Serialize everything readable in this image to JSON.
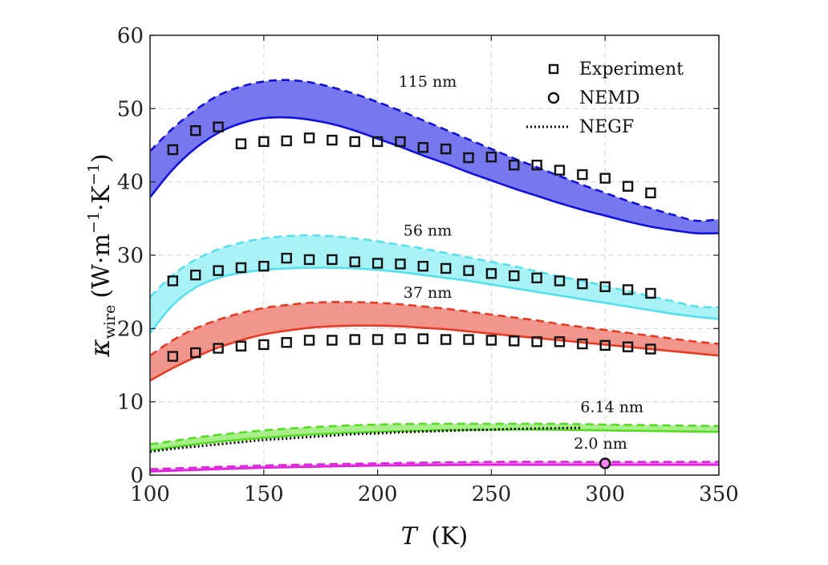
{
  "chart_data": {
    "type": "line",
    "xlabel": "T (K)",
    "xlabel_symbol": "T",
    "xlabel_unit": "(K)",
    "ylabel": "κwire (W·m−1·K−1)",
    "ylabel_symbol": "κ",
    "ylabel_subscript": "wire",
    "ylabel_unit_open": "(W·m",
    "ylabel_unit_exp1": "−1",
    "ylabel_unit_mid": "·K",
    "ylabel_unit_exp2": "−1",
    "ylabel_unit_close": ")",
    "xlim": [
      100,
      350
    ],
    "ylim": [
      0,
      60
    ],
    "xticks": [
      100,
      150,
      200,
      250,
      300,
      350
    ],
    "yticks": [
      0,
      10,
      20,
      30,
      40,
      50,
      60
    ],
    "grid": true,
    "legend_position": "top-right",
    "legend": [
      {
        "label": "Experiment",
        "marker": "square"
      },
      {
        "label": "NEMD",
        "marker": "circle"
      },
      {
        "label": "NEGF",
        "marker": "dotted-line"
      }
    ],
    "bands": [
      {
        "label": "115 nm",
        "color": "#1111dd",
        "fill": "#7777ee",
        "x": [
          100,
          110,
          120,
          130,
          140,
          150,
          160,
          170,
          180,
          190,
          200,
          210,
          220,
          230,
          240,
          250,
          260,
          270,
          280,
          290,
          300,
          310,
          320,
          330,
          340,
          350
        ],
        "upper": [
          44.2,
          47.3,
          49.8,
          51.8,
          53.0,
          53.7,
          53.9,
          53.6,
          52.9,
          52.0,
          50.9,
          49.7,
          48.4,
          47.1,
          45.8,
          44.5,
          43.2,
          42.0,
          40.8,
          39.6,
          38.5,
          37.4,
          36.4,
          35.5,
          34.7,
          34.9
        ],
        "lower": [
          37.9,
          41.7,
          44.6,
          46.7,
          48.0,
          48.7,
          48.8,
          48.5,
          47.9,
          47.0,
          45.9,
          44.8,
          43.6,
          42.5,
          41.3,
          40.2,
          39.1,
          38.1,
          37.1,
          36.2,
          35.4,
          34.6,
          33.9,
          33.4,
          33.0,
          33.0
        ]
      },
      {
        "label": "56 nm",
        "color": "#55e0ee",
        "fill": "#a9f3f7",
        "x": [
          100,
          110,
          120,
          130,
          140,
          150,
          160,
          170,
          180,
          190,
          200,
          210,
          220,
          230,
          240,
          250,
          260,
          270,
          280,
          290,
          300,
          310,
          320,
          330,
          340,
          350
        ],
        "upper": [
          24.3,
          27.3,
          29.4,
          30.8,
          31.7,
          32.3,
          32.6,
          32.7,
          32.6,
          32.3,
          31.9,
          31.4,
          30.9,
          30.3,
          29.7,
          29.1,
          28.5,
          27.8,
          27.1,
          26.5,
          25.8,
          25.1,
          24.4,
          23.7,
          23.0,
          22.9
        ],
        "lower": [
          19.4,
          23.2,
          25.6,
          26.9,
          27.6,
          28.0,
          28.2,
          28.3,
          28.3,
          28.2,
          28.0,
          27.7,
          27.3,
          26.9,
          26.5,
          26.0,
          25.5,
          25.0,
          24.5,
          24.0,
          23.5,
          23.0,
          22.5,
          22.0,
          21.6,
          21.3
        ]
      },
      {
        "label": "37 nm",
        "color": "#e83a22",
        "fill": "#f0968d",
        "x": [
          100,
          110,
          120,
          130,
          140,
          150,
          160,
          170,
          180,
          190,
          200,
          210,
          220,
          230,
          240,
          250,
          260,
          270,
          280,
          290,
          300,
          310,
          320,
          330,
          340,
          350
        ],
        "upper": [
          16.3,
          18.4,
          20.0,
          21.2,
          22.1,
          22.8,
          23.2,
          23.5,
          23.6,
          23.6,
          23.5,
          23.3,
          23.0,
          22.7,
          22.3,
          21.9,
          21.5,
          21.1,
          20.6,
          20.2,
          19.8,
          19.4,
          19.0,
          18.6,
          18.2,
          17.9
        ],
        "lower": [
          12.9,
          14.6,
          16.1,
          17.4,
          18.4,
          19.2,
          19.7,
          20.1,
          20.3,
          20.4,
          20.4,
          20.3,
          20.1,
          19.9,
          19.6,
          19.3,
          19.0,
          18.7,
          18.4,
          18.1,
          17.8,
          17.5,
          17.2,
          16.9,
          16.6,
          16.3
        ]
      },
      {
        "label": "6.14 nm",
        "color": "#55dd22",
        "fill": "#a8ee8a",
        "x": [
          100,
          125,
          150,
          175,
          200,
          225,
          250,
          275,
          300,
          325,
          350
        ],
        "upper": [
          4.2,
          5.3,
          6.1,
          6.6,
          6.9,
          7.0,
          7.0,
          7.0,
          6.9,
          6.8,
          6.7
        ],
        "lower": [
          3.4,
          4.4,
          5.1,
          5.6,
          5.9,
          6.1,
          6.2,
          6.2,
          6.1,
          6.0,
          5.9
        ]
      },
      {
        "label": "2.0 nm",
        "color": "#dd22dd",
        "fill": "#ee88ee",
        "x": [
          100,
          150,
          200,
          250,
          300,
          350
        ],
        "upper": [
          0.8,
          1.3,
          1.6,
          1.8,
          1.8,
          1.8
        ],
        "lower": [
          0.5,
          1.0,
          1.3,
          1.4,
          1.4,
          1.4
        ]
      }
    ],
    "experiment": [
      {
        "label": "115 nm",
        "x": [
          110,
          120,
          130,
          140,
          150,
          160,
          170,
          180,
          190,
          200,
          210,
          220,
          230,
          240,
          250,
          260,
          270,
          280,
          290,
          300,
          310,
          320
        ],
        "y": [
          44.4,
          47.0,
          47.5,
          45.2,
          45.5,
          45.6,
          46.0,
          45.7,
          45.5,
          45.5,
          45.5,
          44.7,
          44.5,
          43.3,
          43.4,
          42.3,
          42.3,
          41.6,
          41.0,
          40.5,
          39.4,
          38.5
        ]
      },
      {
        "label": "56 nm",
        "x": [
          110,
          120,
          130,
          140,
          150,
          160,
          170,
          180,
          190,
          200,
          210,
          220,
          230,
          240,
          250,
          260,
          270,
          280,
          290,
          300,
          310,
          320
        ],
        "y": [
          26.5,
          27.3,
          27.9,
          28.3,
          28.5,
          29.6,
          29.4,
          29.4,
          29.1,
          28.9,
          28.8,
          28.5,
          28.2,
          27.9,
          27.5,
          27.2,
          26.9,
          26.5,
          26.1,
          25.7,
          25.3,
          24.8
        ]
      },
      {
        "label": "37 nm",
        "x": [
          110,
          120,
          130,
          140,
          150,
          160,
          170,
          180,
          190,
          200,
          210,
          220,
          230,
          240,
          250,
          260,
          270,
          280,
          290,
          300,
          310,
          320
        ],
        "y": [
          16.2,
          16.7,
          17.3,
          17.6,
          17.8,
          18.1,
          18.4,
          18.4,
          18.5,
          18.5,
          18.6,
          18.6,
          18.5,
          18.5,
          18.4,
          18.3,
          18.2,
          18.2,
          17.9,
          17.7,
          17.5,
          17.2
        ]
      }
    ],
    "nemd": {
      "label": "2.0 nm",
      "x": [
        300
      ],
      "y": [
        1.6
      ]
    },
    "negf": {
      "label": "6.14 nm",
      "x": [
        100,
        110,
        120,
        130,
        140,
        150,
        160,
        170,
        180,
        190,
        200,
        210,
        220,
        230,
        240,
        250,
        260,
        270,
        280,
        290
      ],
      "y": [
        3.2,
        3.6,
        3.9,
        4.2,
        4.5,
        4.8,
        5.0,
        5.2,
        5.4,
        5.6,
        5.7,
        5.85,
        5.95,
        6.05,
        6.15,
        6.2,
        6.3,
        6.35,
        6.4,
        6.45
      ]
    },
    "annotations": [
      {
        "text": "115 nm",
        "x": 222,
        "y": 53.0
      },
      {
        "text": "56 nm",
        "x": 222,
        "y": 32.7
      },
      {
        "text": "37 nm",
        "x": 222,
        "y": 24.2
      },
      {
        "text": "6.14 nm",
        "x": 303,
        "y": 8.6
      },
      {
        "text": "2.0 nm",
        "x": 298,
        "y": 3.6
      }
    ]
  }
}
